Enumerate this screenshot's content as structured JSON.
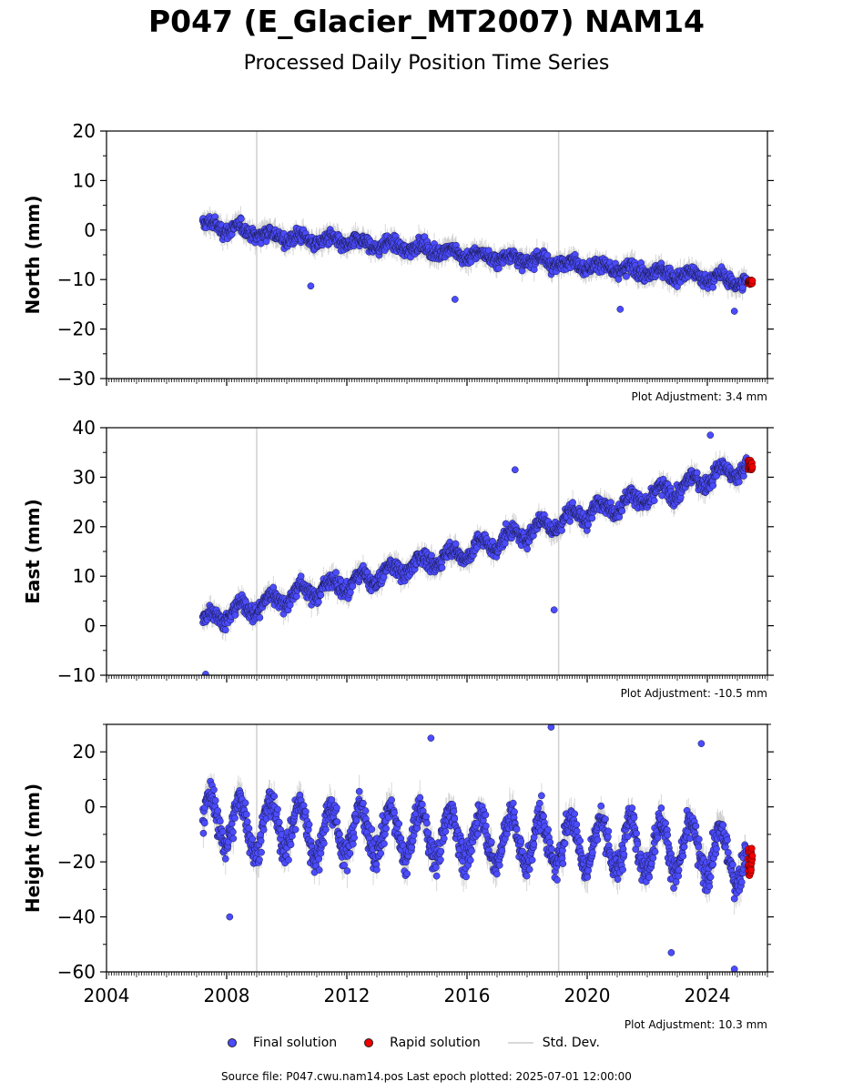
{
  "title": "P047 (E_Glacier_MT2007) NAM14",
  "subtitle": "Processed Daily Position Time Series",
  "footer": "Source file: P047.cwu.nam14.pos  Last epoch plotted: 2025-07-01 12:00:00",
  "legend": {
    "final": "Final solution",
    "rapid": "Rapid solution",
    "std": "Std. Dev."
  },
  "colors": {
    "final": "#4b4bff",
    "rapid": "#ee0000",
    "std": "#c8c8c8"
  },
  "chart_data": [
    {
      "type": "scatter",
      "ylabel": "North (mm)",
      "ylim": [
        -30,
        20
      ],
      "yticks": [
        -30,
        -20,
        -10,
        0,
        10,
        20
      ],
      "xlim": [
        2004,
        2026
      ],
      "adjustment": "Plot Adjustment: 3.4 mm",
      "series": [
        {
          "name": "Final solution",
          "x": [
            2007.2,
            2008.0,
            2009.0,
            2010.0,
            2011.0,
            2012.0,
            2013.0,
            2014.0,
            2015.0,
            2016.0,
            2017.0,
            2018.0,
            2019.0,
            2020.0,
            2021.0,
            2022.0,
            2023.0,
            2024.0,
            2025.3
          ],
          "y": [
            1.0,
            0.5,
            -0.5,
            -1.5,
            -2.0,
            -2.5,
            -3.0,
            -3.5,
            -4.0,
            -5.0,
            -5.5,
            -6.0,
            -6.5,
            -7.0,
            -8.0,
            -8.5,
            -9.0,
            -9.5,
            -10.5
          ]
        },
        {
          "name": "Rapid solution",
          "x": [
            2025.35,
            2025.5
          ],
          "y": [
            -10.0,
            -11.0
          ]
        }
      ],
      "outliers": [
        {
          "x": 2010.8,
          "y": -11.3
        },
        {
          "x": 2015.6,
          "y": -14.0
        },
        {
          "x": 2021.1,
          "y": -16.0
        },
        {
          "x": 2024.9,
          "y": -16.4
        }
      ]
    },
    {
      "type": "scatter",
      "ylabel": "East (mm)",
      "ylim": [
        -10,
        40
      ],
      "yticks": [
        -10,
        0,
        10,
        20,
        30,
        40
      ],
      "xlim": [
        2004,
        2026
      ],
      "adjustment": "Plot Adjustment: -10.5 mm",
      "series": [
        {
          "name": "Final solution",
          "x": [
            2007.2,
            2008.0,
            2009.0,
            2010.0,
            2011.0,
            2012.0,
            2013.0,
            2014.0,
            2015.0,
            2016.0,
            2017.0,
            2018.0,
            2019.0,
            2020.0,
            2021.0,
            2022.0,
            2023.0,
            2024.0,
            2025.3
          ],
          "y": [
            1.0,
            2.5,
            4.0,
            6.0,
            7.5,
            8.5,
            10.0,
            12.0,
            13.5,
            15.0,
            17.0,
            19.0,
            21.0,
            23.0,
            24.5,
            26.0,
            27.5,
            30.0,
            32.0
          ]
        },
        {
          "name": "Rapid solution",
          "x": [
            2025.35,
            2025.5
          ],
          "y": [
            31.5,
            33.5
          ]
        }
      ],
      "outliers": [
        {
          "x": 2007.3,
          "y": -9.8
        },
        {
          "x": 2018.9,
          "y": 3.2
        },
        {
          "x": 2017.6,
          "y": 31.5
        },
        {
          "x": 2024.1,
          "y": 38.5
        }
      ]
    },
    {
      "type": "scatter",
      "ylabel": "Height (mm)",
      "ylim": [
        -60,
        30
      ],
      "yticks": [
        -60,
        -40,
        -20,
        0,
        20
      ],
      "xlim": [
        2004,
        2026
      ],
      "xticks": [
        2004,
        2008,
        2012,
        2016,
        2020,
        2024
      ],
      "adjustment": "Plot Adjustment: 10.3 mm",
      "series": [
        {
          "name": "Final solution",
          "x": [
            2007.2,
            2008.0,
            2009.0,
            2010.0,
            2011.0,
            2012.0,
            2013.0,
            2014.0,
            2015.0,
            2016.0,
            2017.0,
            2018.0,
            2019.0,
            2020.0,
            2021.0,
            2022.0,
            2023.0,
            2024.0,
            2025.3
          ],
          "y": [
            -5,
            -5,
            -8,
            -6,
            -10,
            -8,
            -9,
            -10,
            -10,
            -11,
            -12,
            -12,
            -13,
            -13,
            -14,
            -14,
            -15,
            -16,
            -20
          ]
        },
        {
          "name": "Rapid solution",
          "x": [
            2025.35,
            2025.5
          ],
          "y": [
            -15,
            -25
          ]
        }
      ],
      "outliers": [
        {
          "x": 2008.1,
          "y": -40
        },
        {
          "x": 2014.8,
          "y": 25
        },
        {
          "x": 2018.8,
          "y": 29
        },
        {
          "x": 2023.8,
          "y": 23
        },
        {
          "x": 2022.8,
          "y": -53
        },
        {
          "x": 2024.9,
          "y": -59
        }
      ]
    }
  ]
}
